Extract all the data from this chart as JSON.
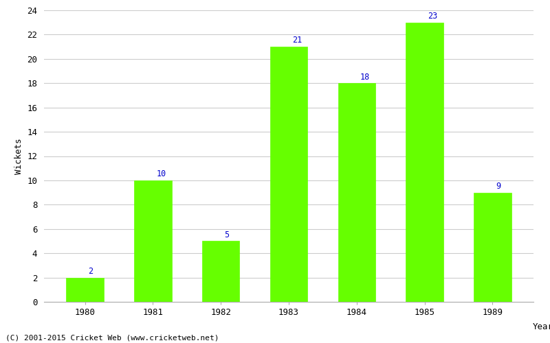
{
  "years": [
    "1980",
    "1981",
    "1982",
    "1983",
    "1984",
    "1985",
    "1989"
  ],
  "values": [
    2,
    10,
    5,
    21,
    18,
    23,
    9
  ],
  "bar_color": "#66ff00",
  "bar_edge_color": "#66ff00",
  "label_color": "#0000cc",
  "xlabel": "Year",
  "ylabel": "Wickets",
  "ylim": [
    0,
    24
  ],
  "yticks": [
    0,
    2,
    4,
    6,
    8,
    10,
    12,
    14,
    16,
    18,
    20,
    22,
    24
  ],
  "grid_color": "#cccccc",
  "background_color": "#ffffff",
  "footer_text": "(C) 2001-2015 Cricket Web (www.cricketweb.net)",
  "label_fontsize": 8.5,
  "axis_fontsize": 9,
  "footer_fontsize": 8,
  "bar_width": 0.55
}
